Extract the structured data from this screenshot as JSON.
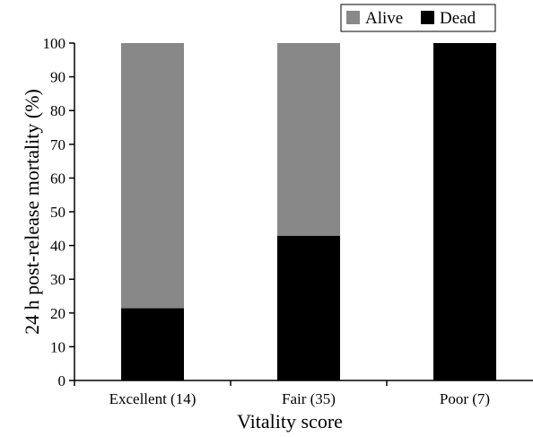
{
  "chart_data": {
    "type": "bar",
    "stacked": true,
    "categories": [
      "Excellent (14)",
      "Fair (35)",
      "Poor (7)"
    ],
    "series": [
      {
        "name": "Dead",
        "values": [
          21.4,
          42.9,
          100
        ],
        "color": "#000000"
      },
      {
        "name": "Alive",
        "values": [
          78.6,
          57.1,
          0
        ],
        "color": "#888888"
      }
    ],
    "xlabel": "Vitality score",
    "ylabel": "24 h post-release mortality (%)",
    "ylim": [
      0,
      100
    ],
    "yticks": [
      0,
      10,
      20,
      30,
      40,
      50,
      60,
      70,
      80,
      90,
      100
    ],
    "legend": {
      "entries": [
        "Alive",
        "Dead"
      ],
      "placement": "top-right"
    },
    "grid": false
  }
}
